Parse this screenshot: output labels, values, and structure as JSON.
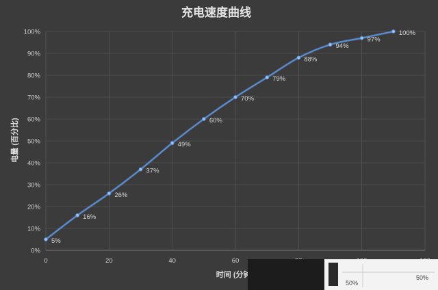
{
  "chart_data": {
    "type": "line",
    "title": "充电速度曲线",
    "xlabel": "时间 (分钟)",
    "ylabel": "电量 (百分比)",
    "xlim": [
      0,
      120
    ],
    "ylim": [
      0,
      100
    ],
    "x_ticks": [
      "0",
      "20",
      "40",
      "60",
      "80",
      "100",
      "120"
    ],
    "y_ticks": [
      "0%",
      "10%",
      "20%",
      "30%",
      "40%",
      "50%",
      "60%",
      "70%",
      "80%",
      "90%",
      "100%"
    ],
    "grid": true,
    "series": [
      {
        "color": "#5a8fd6",
        "x": [
          0,
          10,
          20,
          30,
          40,
          50,
          60,
          70,
          80,
          90,
          100,
          110
        ],
        "values": [
          5,
          16,
          26,
          37,
          49,
          60,
          70,
          79,
          88,
          94,
          97,
          100
        ],
        "labels": [
          "5%",
          "16%",
          "26%",
          "37%",
          "49%",
          "60%",
          "70%",
          "79%",
          "88%",
          "94%",
          "97%",
          "100%"
        ]
      }
    ]
  },
  "overlay": {
    "label_left": "50%",
    "label_right": "50%"
  }
}
